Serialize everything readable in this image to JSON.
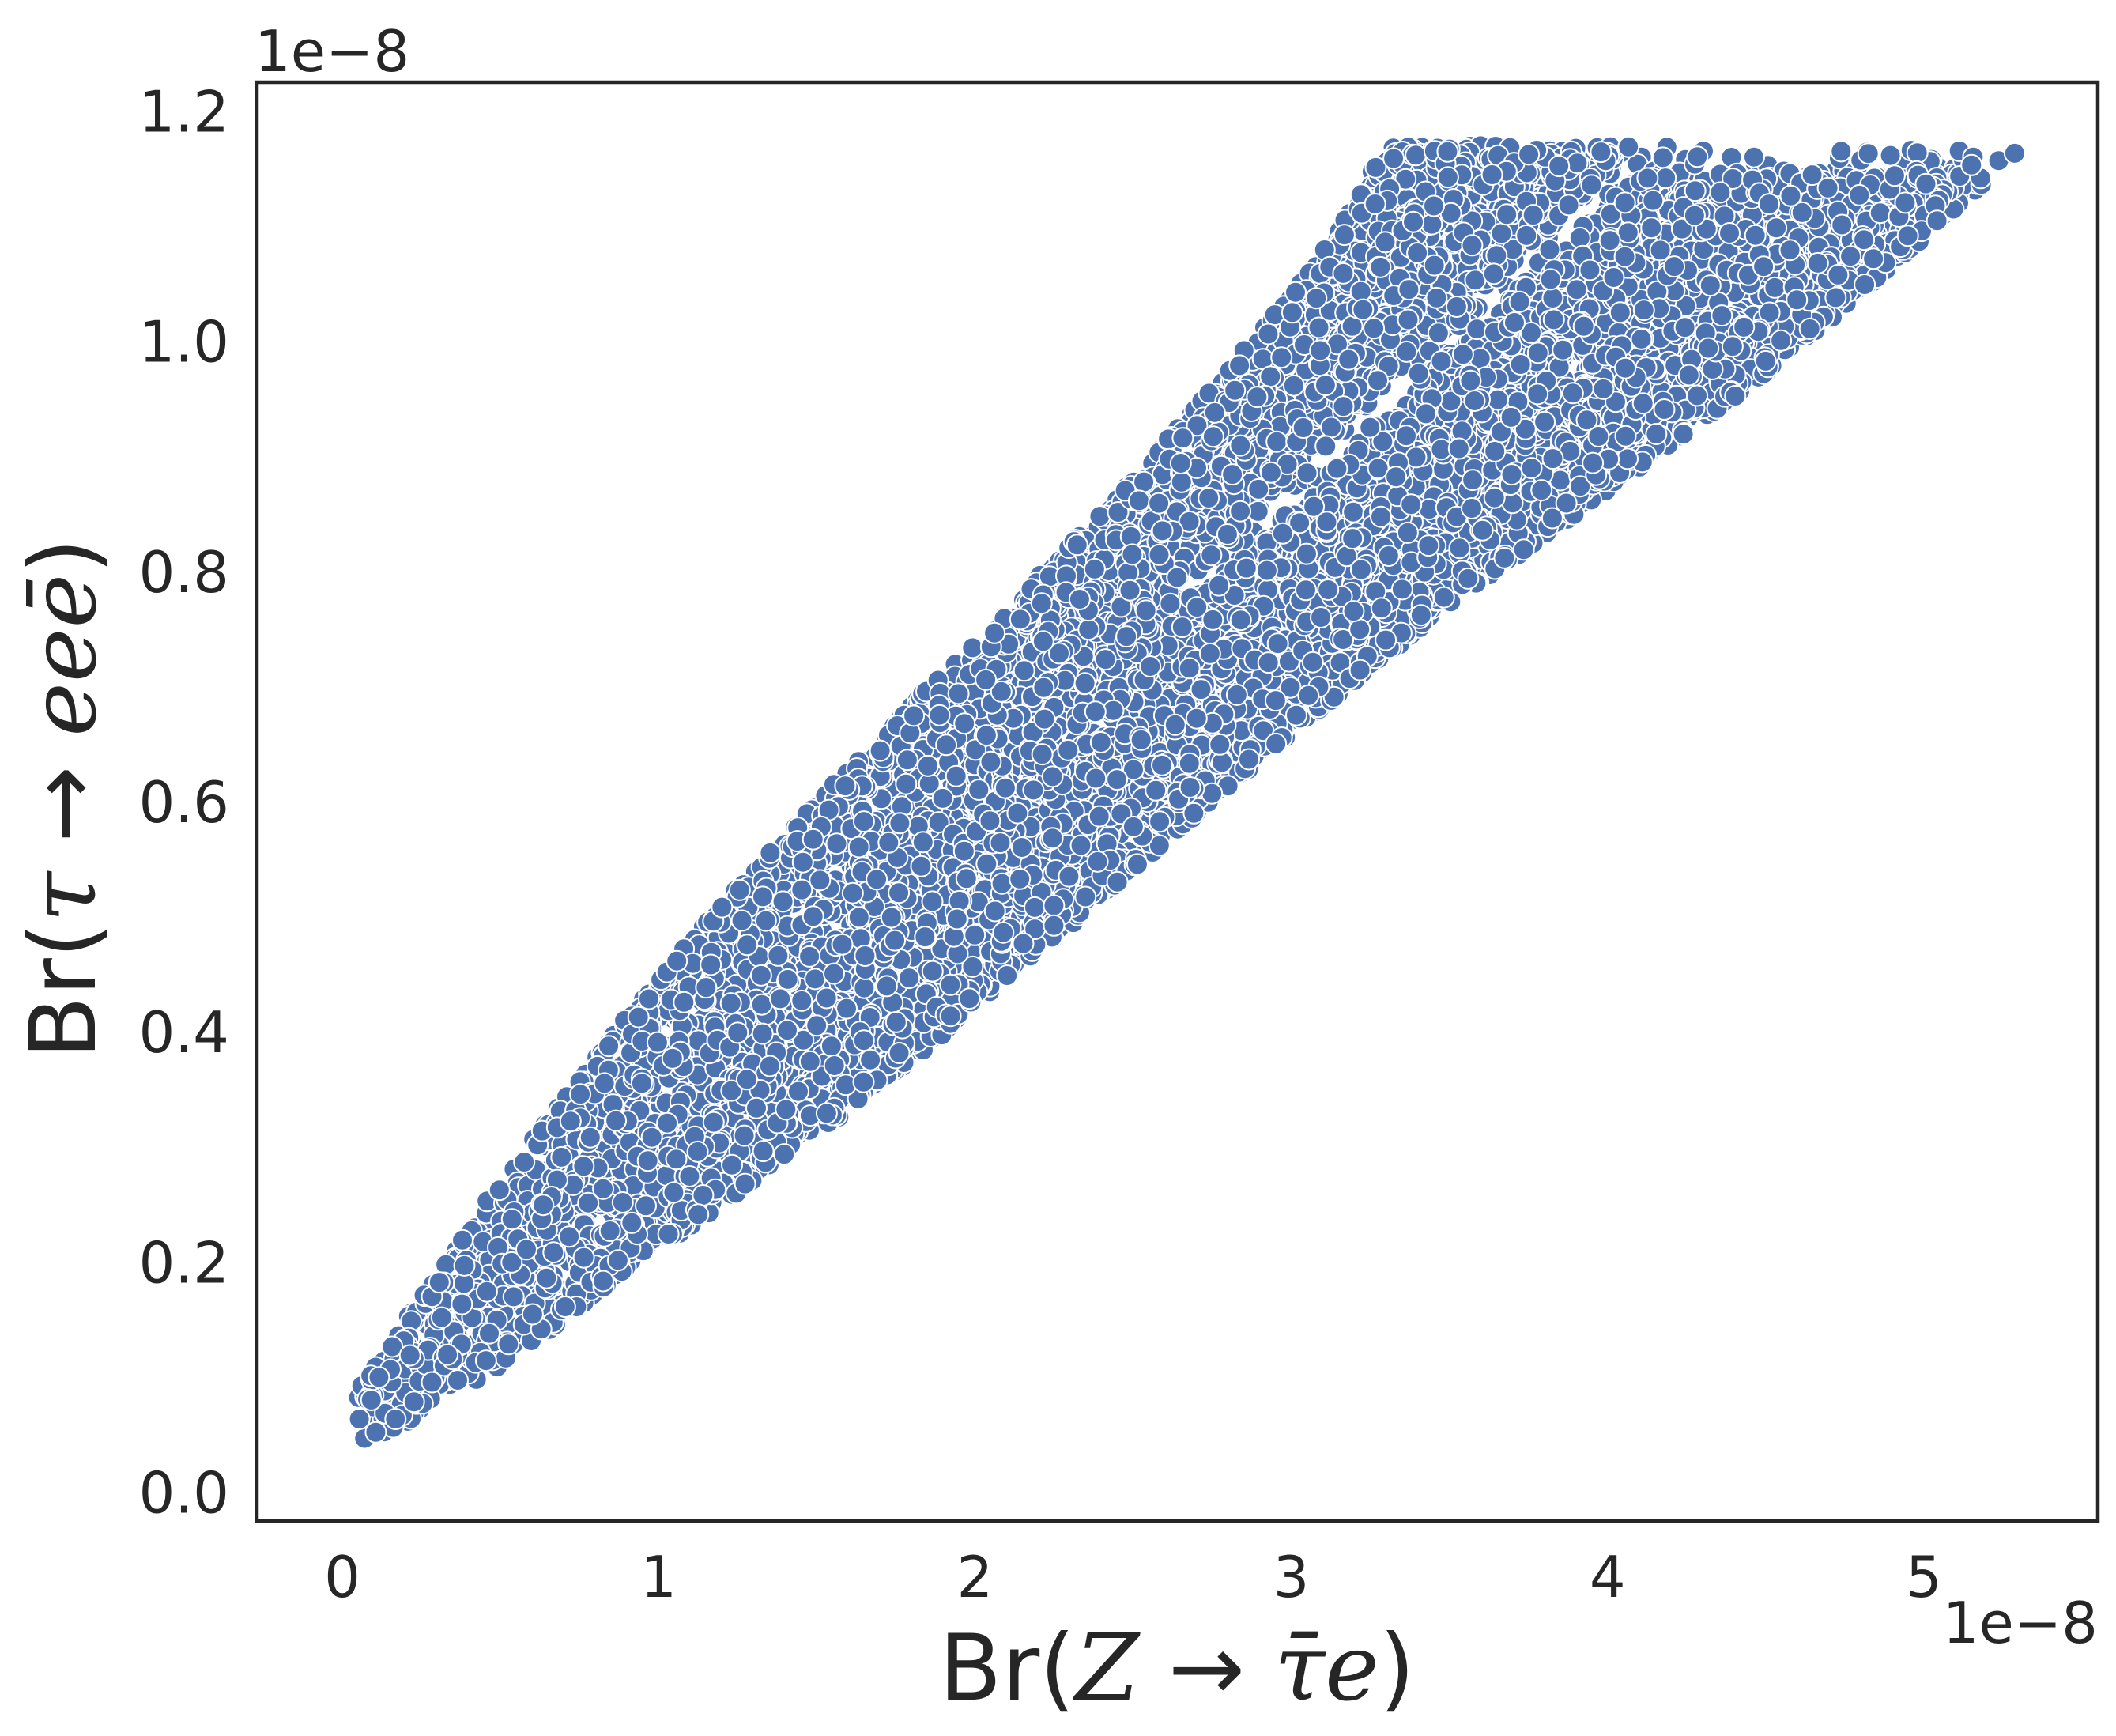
{
  "chart_data": {
    "type": "scatter",
    "title": "",
    "xlabel_parts": {
      "pre": "Br(",
      "var": "Z",
      "arrow": " → ",
      "mid": "τ̄e",
      "post": ")"
    },
    "ylabel_parts": {
      "pre": "Br(",
      "var": "τ",
      "arrow": " → ",
      "mid": "eeē",
      "post": ")"
    },
    "x_offset_label": "1e−8",
    "y_offset_label": "1e−8",
    "xlim": [
      -0.27,
      5.55
    ],
    "ylim": [
      -0.025,
      1.225
    ],
    "x_ticks": [
      0,
      1,
      2,
      3,
      4,
      5
    ],
    "x_tick_labels": [
      "0",
      "1",
      "2",
      "3",
      "4",
      "5"
    ],
    "y_ticks": [
      0.0,
      0.2,
      0.4,
      0.6,
      0.8,
      1.0,
      1.2
    ],
    "y_tick_labels": [
      "0.0",
      "0.2",
      "0.4",
      "0.6",
      "0.8",
      "1.0",
      "1.2"
    ],
    "grid": false,
    "legend": "none",
    "marker_color": "#4c72b0",
    "marker_edge_color": "#ffffff",
    "region_outline": {
      "description": "dense cloud of points filling this polygon (units of 1e-8)",
      "upper_edge": [
        [
          0.0,
          0.07
        ],
        [
          0.2,
          0.15
        ],
        [
          0.5,
          0.27
        ],
        [
          1.0,
          0.45
        ],
        [
          1.5,
          0.6
        ],
        [
          2.0,
          0.74
        ],
        [
          2.5,
          0.88
        ],
        [
          3.0,
          1.04
        ],
        [
          3.2,
          1.12
        ],
        [
          3.3,
          1.17
        ]
      ],
      "top_edge": [
        [
          3.3,
          1.17
        ],
        [
          3.7,
          1.17
        ],
        [
          3.9,
          1.17
        ],
        [
          4.5,
          1.17
        ],
        [
          5.3,
          1.165
        ]
      ],
      "lower_edge": [
        [
          5.3,
          1.165
        ],
        [
          5.0,
          1.09
        ],
        [
          4.5,
          0.97
        ],
        [
          4.0,
          0.87
        ],
        [
          3.5,
          0.77
        ],
        [
          3.0,
          0.66
        ],
        [
          2.5,
          0.54
        ],
        [
          2.0,
          0.42
        ],
        [
          1.5,
          0.31
        ],
        [
          1.0,
          0.21
        ],
        [
          0.5,
          0.11
        ],
        [
          0.2,
          0.06
        ],
        [
          0.05,
          0.04
        ],
        [
          0.0,
          0.045
        ]
      ],
      "gap_band": [
        [
          2.6,
          0.76
        ],
        [
          3.2,
          0.92
        ],
        [
          3.6,
          1.03
        ],
        [
          4.0,
          1.13
        ],
        [
          4.1,
          1.16
        ]
      ]
    },
    "point_count_rendered": 9000,
    "seed": 7
  }
}
